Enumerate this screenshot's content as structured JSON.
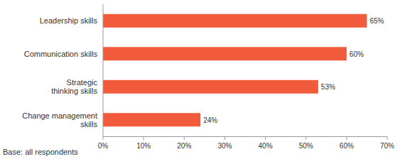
{
  "chart_data": {
    "type": "bar",
    "orientation": "horizontal",
    "categories": [
      "Leadership skills",
      "Communication skills",
      "Strategic\nthinking skills",
      "Change management\nskills"
    ],
    "values": [
      65,
      60,
      53,
      24
    ],
    "value_labels": [
      "65%",
      "60%",
      "53%",
      "24%"
    ],
    "data_labels": true,
    "color": "#f15a3a",
    "xlim": [
      0,
      70
    ],
    "xticks": [
      {
        "value": 0,
        "label": "0%"
      },
      {
        "value": 10,
        "label": "10%"
      },
      {
        "value": 20,
        "label": "20%"
      },
      {
        "value": 30,
        "label": "30%"
      },
      {
        "value": 40,
        "label": "40%"
      },
      {
        "value": 50,
        "label": "50%"
      },
      {
        "value": 60,
        "label": "60%"
      },
      {
        "value": 70,
        "label": "70%"
      }
    ],
    "grid": false,
    "annotations": [
      "Base: all respondents"
    ]
  }
}
